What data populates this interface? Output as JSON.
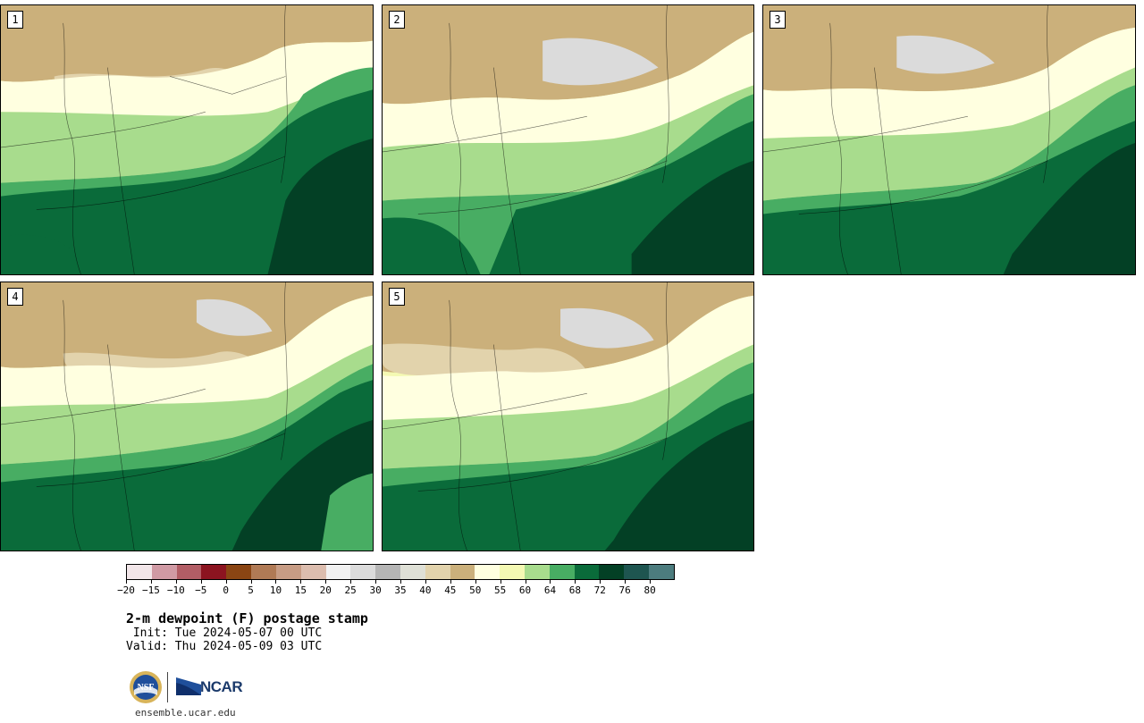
{
  "product": {
    "title": "2-m dewpoint (F) postage stamp",
    "init": " Init: Tue 2024-05-07 00 UTC",
    "valid": "Valid: Thu 2024-05-09 03 UTC",
    "website": "ensemble.ucar.edu"
  },
  "members": [
    "1",
    "2",
    "3",
    "4",
    "5"
  ],
  "colorbar": {
    "colors": [
      "#f2e6e9",
      "#d09aa4",
      "#b25d65",
      "#8c1420",
      "#8a4513",
      "#b07a55",
      "#c79c84",
      "#dcbdae",
      "#f1f1f1",
      "#dbdbdb",
      "#b5b5b5",
      "#dfe0d6",
      "#e2d3ac",
      "#cbb07b",
      "#ffffe0",
      "#f4f9b3",
      "#a8dc8d",
      "#48ad63",
      "#0a6b3a",
      "#034025",
      "#1e5550",
      "#4c7c7e"
    ],
    "tick_labels": [
      "−20",
      "−15",
      "−10",
      "−5",
      "0",
      "5",
      "10",
      "15",
      "20",
      "25",
      "30",
      "35",
      "40",
      "45",
      "50",
      "55",
      "60",
      "64",
      "68",
      "72",
      "76",
      "80"
    ]
  },
  "logos": {
    "nsf_text": "NSF",
    "ncar_text": "NCAR"
  },
  "map_colors": {
    "brown": "#cbb07b",
    "light_tan": "#e2d3ac",
    "gray": "#dbdbdb",
    "cream": "#ffffe0",
    "yellow": "#f4f9b3",
    "light_green": "#a8dc8d",
    "green": "#48ad63",
    "dark_green": "#0a6b3a",
    "darkest_green": "#034025"
  }
}
